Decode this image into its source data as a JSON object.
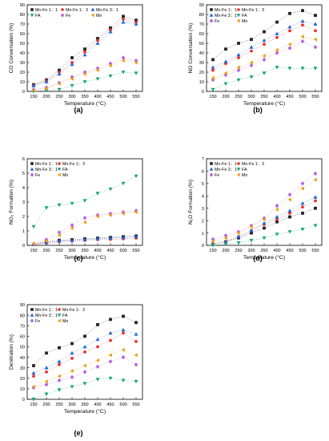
{
  "legend_labels": [
    "Mn-Fe 1：1",
    "Mn-Fe 1：3",
    "Mn-Fe 3：1",
    "FA",
    "Fe",
    "Mn"
  ],
  "series_styles": [
    {
      "color": "#222222",
      "marker": "square"
    },
    {
      "color": "#e8312f",
      "marker": "circle"
    },
    {
      "color": "#2166d6",
      "marker": "triangle-up"
    },
    {
      "color": "#1aa37a",
      "marker": "triangle-down"
    },
    {
      "color": "#b35fe0",
      "marker": "diamond"
    },
    {
      "color": "#e8a21e",
      "marker": "triangle-left"
    }
  ],
  "chart_data": [
    {
      "panel": "(a)",
      "type": "scatter",
      "xlabel": "Temperature (°C)",
      "ylabel": "CO Conversation (%)",
      "x": [
        150,
        200,
        250,
        300,
        350,
        400,
        450,
        500,
        550
      ],
      "xlim": [
        125,
        575
      ],
      "ylim": [
        0,
        90
      ],
      "yticks": [
        0,
        10,
        20,
        30,
        40,
        50,
        60,
        70,
        80,
        90
      ],
      "legend_columns": 3,
      "legend_order": [
        0,
        1,
        2,
        3,
        4,
        5
      ],
      "series": [
        {
          "name": "Mn-Fe 1：1",
          "values": [
            7,
            12,
            22,
            35,
            44,
            55,
            66,
            78,
            74
          ]
        },
        {
          "name": "Mn-Fe 1：3",
          "values": [
            6,
            11,
            20,
            30,
            41,
            53,
            64,
            75,
            72
          ]
        },
        {
          "name": "Mn-Fe 3：1",
          "values": [
            6,
            10,
            18,
            28,
            38,
            50,
            62,
            72,
            70
          ]
        },
        {
          "name": "FA",
          "values": [
            0,
            1,
            2,
            6,
            10,
            13,
            16,
            20,
            19
          ]
        },
        {
          "name": "Fe",
          "values": [
            2,
            4,
            9,
            15,
            20,
            24,
            29,
            35,
            32
          ]
        },
        {
          "name": "Mn",
          "values": [
            1,
            3,
            8,
            13,
            18,
            22,
            27,
            32,
            30
          ]
        }
      ]
    },
    {
      "panel": "(b)",
      "type": "scatter",
      "xlabel": "Temperature (°C)",
      "ylabel": "NO Conversation (%)",
      "x": [
        150,
        200,
        250,
        300,
        350,
        400,
        450,
        500,
        550
      ],
      "xlim": [
        125,
        575
      ],
      "ylim": [
        0,
        90
      ],
      "yticks": [
        0,
        10,
        20,
        30,
        40,
        50,
        60,
        70,
        80,
        90
      ],
      "legend_columns": 2,
      "legend_order": [
        0,
        1,
        2,
        3,
        4,
        5
      ],
      "series": [
        {
          "name": "Mn-Fe 1：1",
          "values": [
            33,
            44,
            50,
            54,
            62,
            72,
            81,
            84,
            79
          ]
        },
        {
          "name": "Mn-Fe 1：3",
          "values": [
            22,
            29,
            35,
            42,
            49,
            56,
            63,
            69,
            63
          ]
        },
        {
          "name": "Mn-Fe 3：1",
          "values": [
            25,
            31,
            38,
            46,
            53,
            60,
            67,
            73,
            70
          ]
        },
        {
          "name": "FA",
          "values": [
            2,
            8,
            12,
            15,
            19,
            25,
            24,
            24,
            24
          ]
        },
        {
          "name": "Fe",
          "values": [
            12,
            17,
            22,
            27,
            33,
            40,
            45,
            52,
            46
          ]
        },
        {
          "name": "Mn",
          "values": [
            14,
            19,
            25,
            30,
            37,
            43,
            49,
            57,
            54
          ]
        }
      ]
    },
    {
      "panel": "(c)",
      "type": "scatter",
      "xlabel": "Temperature (°C)",
      "ylabel": "NO₂ Formation (%)",
      "x": [
        150,
        200,
        250,
        300,
        350,
        400,
        450,
        500,
        550
      ],
      "xlim": [
        125,
        575
      ],
      "ylim": [
        0,
        6
      ],
      "yticks": [
        0,
        1,
        2,
        3,
        4,
        5,
        6
      ],
      "legend_columns": 2,
      "legend_order": [
        0,
        1,
        2,
        3,
        4,
        5
      ],
      "series": [
        {
          "name": "Mn-Fe 1：1",
          "values": [
            0.05,
            0.25,
            0.35,
            0.4,
            0.45,
            0.5,
            0.55,
            0.6,
            0.65
          ]
        },
        {
          "name": "Mn-Fe 1：3",
          "values": [
            0.05,
            0.15,
            0.25,
            0.3,
            0.35,
            0.4,
            0.42,
            0.45,
            0.5
          ]
        },
        {
          "name": "Mn-Fe 3：1",
          "values": [
            0.05,
            0.2,
            0.3,
            0.35,
            0.4,
            0.45,
            0.5,
            0.55,
            0.6
          ]
        },
        {
          "name": "FA",
          "values": [
            1.3,
            2.6,
            2.8,
            2.9,
            3.1,
            3.6,
            3.9,
            4.3,
            4.8
          ]
        },
        {
          "name": "Fe",
          "values": [
            0.1,
            0.4,
            0.9,
            1.4,
            1.9,
            2.1,
            2.2,
            2.3,
            2.4
          ]
        },
        {
          "name": "Mn",
          "values": [
            0.1,
            0.3,
            0.7,
            1.2,
            1.6,
            2.0,
            2.1,
            2.2,
            2.3
          ]
        }
      ]
    },
    {
      "panel": "(d)",
      "type": "scatter",
      "xlabel": "Temperature (°C)",
      "ylabel": "N₂O Formation (%)",
      "x": [
        150,
        200,
        250,
        300,
        350,
        400,
        450,
        500,
        550
      ],
      "xlim": [
        125,
        575
      ],
      "ylim": [
        0,
        7
      ],
      "yticks": [
        0,
        1,
        2,
        3,
        4,
        5,
        6,
        7
      ],
      "legend_columns": 2,
      "legend_order": [
        0,
        1,
        2,
        3,
        4,
        5
      ],
      "series": [
        {
          "name": "Mn-Fe 1：1",
          "values": [
            0.1,
            0.3,
            0.6,
            1.0,
            1.4,
            1.9,
            2.3,
            2.6,
            3.0
          ]
        },
        {
          "name": "Mn-Fe 1：3",
          "values": [
            0.1,
            0.3,
            0.7,
            1.2,
            1.7,
            2.1,
            2.6,
            3.1,
            3.6
          ]
        },
        {
          "name": "Mn-Fe 3：1",
          "values": [
            0.1,
            0.3,
            0.7,
            1.2,
            1.8,
            2.3,
            2.8,
            3.4,
            3.9
          ]
        },
        {
          "name": "FA",
          "values": [
            0.0,
            0.1,
            0.2,
            0.4,
            0.6,
            0.9,
            1.1,
            1.3,
            1.6
          ]
        },
        {
          "name": "Fe",
          "values": [
            0.5,
            0.8,
            1.1,
            1.6,
            2.2,
            3.2,
            4.1,
            5.0,
            5.8
          ]
        },
        {
          "name": "Mn",
          "values": [
            0.3,
            0.6,
            1.0,
            1.5,
            2.1,
            2.9,
            3.7,
            4.6,
            5.3
          ]
        }
      ]
    },
    {
      "panel": "(e)",
      "type": "scatter",
      "xlabel": "Temperature (°C)",
      "ylabel": "Denitration (%)",
      "x": [
        150,
        200,
        250,
        300,
        350,
        400,
        450,
        500,
        550
      ],
      "xlim": [
        125,
        575
      ],
      "ylim": [
        0,
        90
      ],
      "yticks": [
        0,
        10,
        20,
        30,
        40,
        50,
        60,
        70,
        80,
        90
      ],
      "legend_columns": 2,
      "legend_order": [
        0,
        1,
        2,
        3,
        4,
        5
      ],
      "series": [
        {
          "name": "Mn-Fe 1：1",
          "values": [
            32,
            44,
            49,
            53,
            60,
            71,
            76,
            79,
            73
          ]
        },
        {
          "name": "Mn-Fe 1：3",
          "values": [
            22,
            26,
            33,
            39,
            45,
            50,
            56,
            63,
            55
          ]
        },
        {
          "name": "Mn-Fe 3：1",
          "values": [
            25,
            30,
            36,
            44,
            50,
            57,
            63,
            66,
            62
          ]
        },
        {
          "name": "FA",
          "values": [
            0,
            5,
            9,
            12,
            15,
            19,
            20,
            18,
            17
          ]
        },
        {
          "name": "Fe",
          "values": [
            11,
            14,
            18,
            21,
            26,
            31,
            36,
            40,
            33
          ]
        },
        {
          "name": "Mn",
          "values": [
            12,
            17,
            22,
            27,
            32,
            37,
            42,
            47,
            42
          ]
        }
      ]
    }
  ],
  "captions": [
    "(a)",
    "(b)",
    "(c)",
    "(d)",
    "(e)"
  ]
}
